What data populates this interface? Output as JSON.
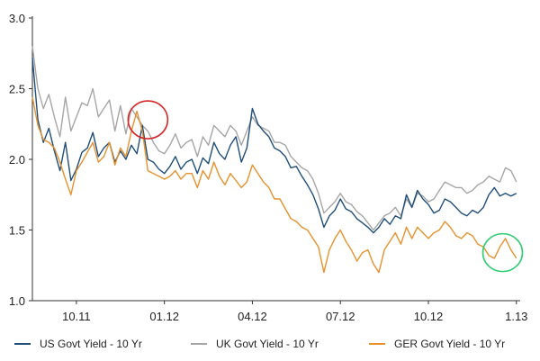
{
  "chart_data": {
    "type": "line",
    "title": "",
    "xlabel": "",
    "ylabel": "",
    "ylim": [
      1.0,
      3.0
    ],
    "xlim": [
      0,
      180
    ],
    "yticks": [
      {
        "value": 1.0,
        "label": "1.0"
      },
      {
        "value": 1.5,
        "label": "1.5"
      },
      {
        "value": 2.0,
        "label": "2.0"
      },
      {
        "value": 2.5,
        "label": "2.5"
      },
      {
        "value": 3.0,
        "label": "3.0"
      }
    ],
    "xticks": [
      {
        "value": 16,
        "label": "10.11"
      },
      {
        "value": 48,
        "label": "01.12"
      },
      {
        "value": 80,
        "label": "04.12"
      },
      {
        "value": 112,
        "label": "07.12"
      },
      {
        "value": 144,
        "label": "10.12"
      },
      {
        "value": 176,
        "label": "1.13"
      }
    ],
    "grid": false,
    "legend_position": "bottom",
    "series": [
      {
        "name": "US Govt Yield - 10 Yr",
        "color": "#1f4e79",
        "x": [
          0,
          2,
          4,
          6,
          8,
          10,
          12,
          14,
          16,
          18,
          20,
          22,
          24,
          26,
          28,
          30,
          32,
          34,
          36,
          38,
          40,
          42,
          44,
          46,
          48,
          50,
          52,
          54,
          56,
          58,
          60,
          62,
          64,
          66,
          68,
          70,
          72,
          74,
          76,
          78,
          80,
          82,
          84,
          86,
          88,
          90,
          92,
          94,
          96,
          98,
          100,
          102,
          104,
          106,
          108,
          110,
          112,
          114,
          116,
          118,
          120,
          122,
          124,
          126,
          128,
          130,
          132,
          134,
          136,
          138,
          140,
          142,
          144,
          146,
          148,
          150,
          152,
          154,
          156,
          158,
          160,
          162,
          164,
          166,
          168,
          170,
          172,
          174,
          176
        ],
        "values": [
          2.72,
          2.28,
          2.12,
          2.22,
          2.06,
          1.92,
          2.12,
          1.85,
          1.93,
          2.05,
          2.08,
          2.19,
          2.02,
          2.08,
          2.12,
          1.98,
          2.06,
          2.0,
          2.1,
          2.04,
          2.24,
          2.0,
          1.98,
          1.93,
          1.9,
          1.95,
          2.02,
          1.93,
          1.98,
          2.0,
          1.9,
          2.01,
          1.97,
          2.12,
          2.04,
          2.0,
          2.1,
          2.16,
          1.98,
          2.08,
          2.36,
          2.25,
          2.2,
          2.16,
          2.08,
          2.06,
          2.02,
          1.94,
          1.95,
          1.88,
          1.82,
          1.75,
          1.65,
          1.52,
          1.6,
          1.64,
          1.72,
          1.65,
          1.63,
          1.58,
          1.55,
          1.52,
          1.48,
          1.52,
          1.58,
          1.54,
          1.6,
          1.58,
          1.75,
          1.66,
          1.78,
          1.72,
          1.68,
          1.62,
          1.64,
          1.72,
          1.7,
          1.66,
          1.62,
          1.6,
          1.64,
          1.62,
          1.66,
          1.75,
          1.8,
          1.74,
          1.76,
          1.74,
          1.76
        ]
      },
      {
        "name": "UK Govt Yield - 10 Yr",
        "color": "#a6a6a6",
        "x": [
          0,
          2,
          4,
          6,
          8,
          10,
          12,
          14,
          16,
          18,
          20,
          22,
          24,
          26,
          28,
          30,
          32,
          34,
          36,
          38,
          40,
          42,
          44,
          46,
          48,
          50,
          52,
          54,
          56,
          58,
          60,
          62,
          64,
          66,
          68,
          70,
          72,
          74,
          76,
          78,
          80,
          82,
          84,
          86,
          88,
          90,
          92,
          94,
          96,
          98,
          100,
          102,
          104,
          106,
          108,
          110,
          112,
          114,
          116,
          118,
          120,
          122,
          124,
          126,
          128,
          130,
          132,
          134,
          136,
          138,
          140,
          142,
          144,
          146,
          148,
          150,
          152,
          154,
          156,
          158,
          160,
          162,
          164,
          166,
          168,
          170,
          172,
          174,
          176
        ],
        "values": [
          2.8,
          2.5,
          2.36,
          2.46,
          2.3,
          2.16,
          2.44,
          2.2,
          2.3,
          2.4,
          2.38,
          2.5,
          2.3,
          2.36,
          2.42,
          2.2,
          2.38,
          2.18,
          2.36,
          2.3,
          2.24,
          2.2,
          2.12,
          2.06,
          2.04,
          2.1,
          2.18,
          2.08,
          2.12,
          2.14,
          2.02,
          2.16,
          2.1,
          2.24,
          2.2,
          2.16,
          2.24,
          2.2,
          2.1,
          2.2,
          2.3,
          2.24,
          2.22,
          2.2,
          2.12,
          2.12,
          2.1,
          2.02,
          1.98,
          1.94,
          1.92,
          1.86,
          1.76,
          1.62,
          1.66,
          1.7,
          1.76,
          1.7,
          1.68,
          1.63,
          1.6,
          1.55,
          1.5,
          1.55,
          1.6,
          1.62,
          1.66,
          1.6,
          1.72,
          1.66,
          1.76,
          1.74,
          1.7,
          1.72,
          1.78,
          1.84,
          1.82,
          1.8,
          1.8,
          1.76,
          1.78,
          1.82,
          1.84,
          1.88,
          1.86,
          1.84,
          1.94,
          1.92,
          1.84
        ]
      },
      {
        "name": "GER Govt Yield - 10 Yr",
        "color": "#e8912d",
        "x": [
          0,
          2,
          4,
          6,
          8,
          10,
          12,
          14,
          16,
          18,
          20,
          22,
          24,
          26,
          28,
          30,
          32,
          34,
          36,
          38,
          40,
          42,
          44,
          46,
          48,
          50,
          52,
          54,
          56,
          58,
          60,
          62,
          64,
          66,
          68,
          70,
          72,
          74,
          76,
          78,
          80,
          82,
          84,
          86,
          88,
          90,
          92,
          94,
          96,
          98,
          100,
          102,
          104,
          106,
          108,
          110,
          112,
          114,
          116,
          118,
          120,
          122,
          124,
          126,
          128,
          130,
          132,
          134,
          136,
          138,
          140,
          142,
          144,
          146,
          148,
          150,
          152,
          154,
          156,
          158,
          160,
          162,
          164,
          166,
          168,
          170,
          172,
          174,
          176
        ],
        "values": [
          2.44,
          2.24,
          2.14,
          2.12,
          2.08,
          1.98,
          1.86,
          1.75,
          1.92,
          1.98,
          2.05,
          2.12,
          1.98,
          2.02,
          2.12,
          1.96,
          2.08,
          2.02,
          2.2,
          2.34,
          2.2,
          1.92,
          1.9,
          1.88,
          1.86,
          1.88,
          1.92,
          1.86,
          1.9,
          1.9,
          1.8,
          1.92,
          1.86,
          1.98,
          1.88,
          1.82,
          1.9,
          1.85,
          1.8,
          1.84,
          1.96,
          1.9,
          1.84,
          1.8,
          1.72,
          1.72,
          1.65,
          1.58,
          1.56,
          1.52,
          1.5,
          1.44,
          1.38,
          1.2,
          1.36,
          1.44,
          1.5,
          1.42,
          1.36,
          1.28,
          1.34,
          1.36,
          1.26,
          1.2,
          1.36,
          1.42,
          1.48,
          1.4,
          1.52,
          1.44,
          1.52,
          1.48,
          1.44,
          1.48,
          1.5,
          1.56,
          1.52,
          1.46,
          1.44,
          1.48,
          1.46,
          1.4,
          1.38,
          1.32,
          1.3,
          1.38,
          1.44,
          1.36,
          1.3
        ]
      }
    ],
    "annotations": [
      {
        "type": "circle",
        "color": "#d62728",
        "x": 42,
        "y": 2.28
      },
      {
        "type": "circle",
        "color": "#2ecc71",
        "x": 171,
        "y": 1.34
      }
    ]
  }
}
